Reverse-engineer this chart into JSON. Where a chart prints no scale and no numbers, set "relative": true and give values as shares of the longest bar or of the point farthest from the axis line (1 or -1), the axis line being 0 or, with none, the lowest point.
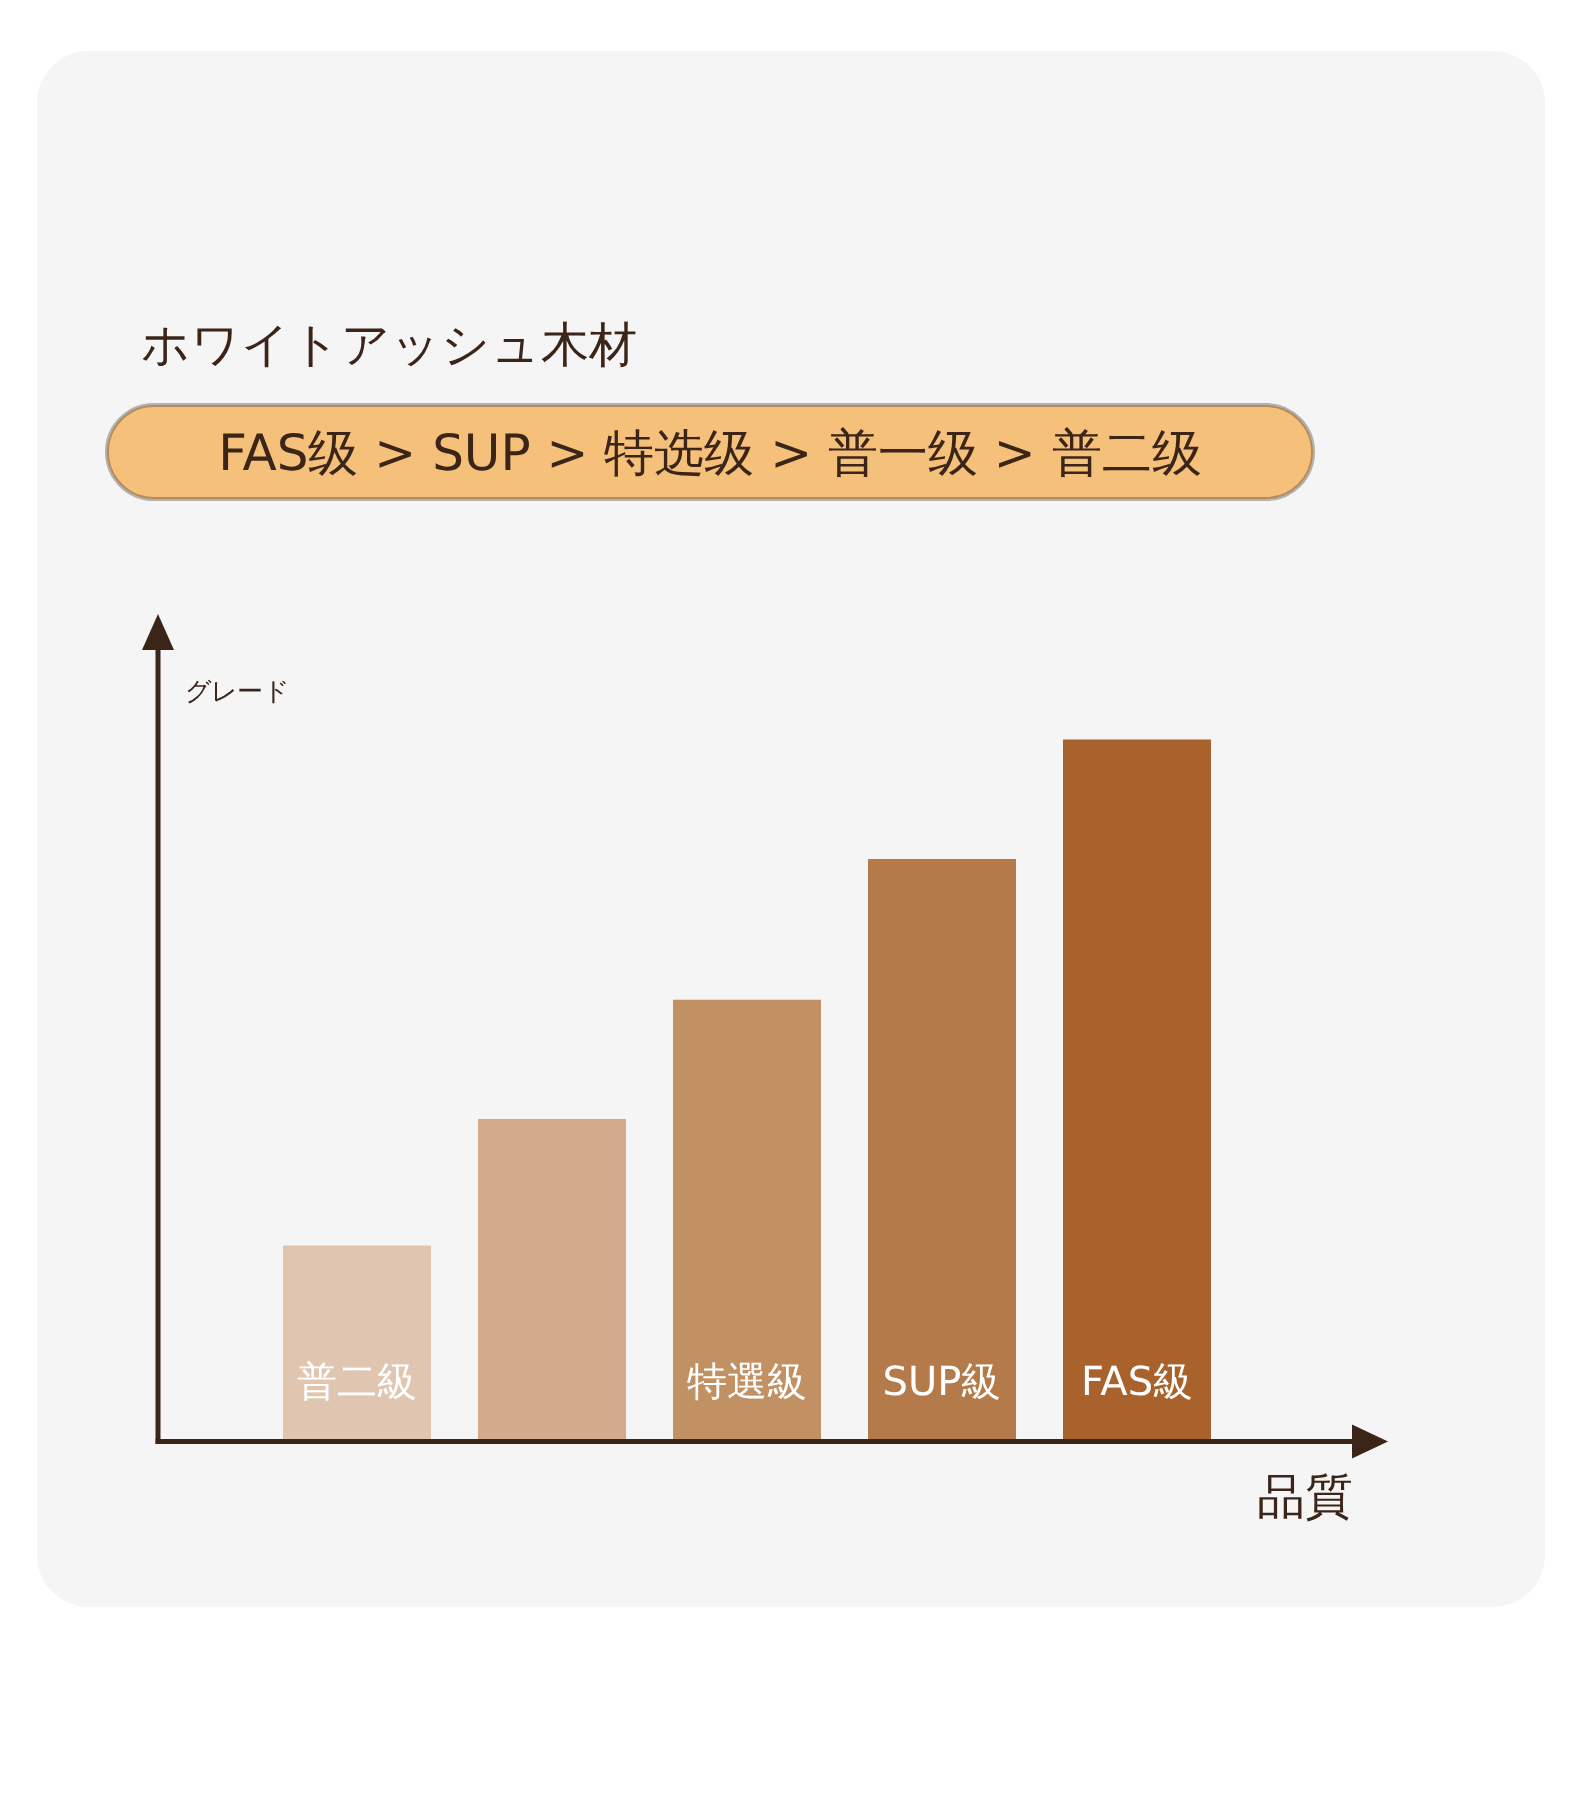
{
  "chart_data": {
    "type": "bar",
    "title": "ホワイトアッシュ木材",
    "subtitle": "FAS级 > SUP > 特选级 > 普一级 > 普二级",
    "xlabel": "品質",
    "ylabel": "グレード",
    "categories": [
      "普二級",
      null,
      "特選級",
      "SUP級",
      "FAS級"
    ],
    "values": [
      0.28,
      0.46,
      0.63,
      0.83,
      1
    ],
    "colors": [
      "#e0c6b0",
      "#d3ab8b",
      "#c29163",
      "#b57a49",
      "#a9622b"
    ],
    "relative": true
  }
}
